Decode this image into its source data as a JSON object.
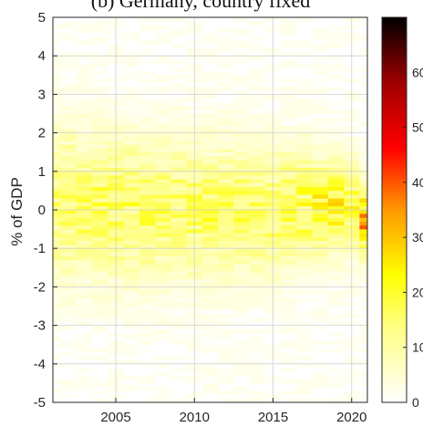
{
  "chart_data": {
    "type": "heatmap",
    "title": "(b) Germany, country fixed",
    "xlabel": "",
    "ylabel": "% of GDP",
    "xlim": [
      2001,
      2021
    ],
    "ylim": [
      -5,
      5
    ],
    "x_ticks": [
      "2005",
      "2010",
      "2015",
      "2020"
    ],
    "y_ticks": [
      "-5",
      "-4",
      "-3",
      "-2",
      "-1",
      "0",
      "1",
      "2",
      "3",
      "4",
      "5"
    ],
    "grid": true,
    "colormap": "hot-reversed",
    "colorbar": {
      "range": [
        0,
        70
      ],
      "ticks": [
        "0",
        "10",
        "20",
        "30",
        "40",
        "50",
        "60"
      ]
    },
    "density_profile": {
      "x_range": [
        2001,
        2021
      ],
      "center_y": [
        0.2,
        0.15,
        0.1,
        0.1,
        0.05,
        0.05,
        0.0,
        0.0,
        0.05,
        0.0,
        0.0,
        0.0,
        0.0,
        0.0,
        0.0,
        0.05,
        0.1,
        0.1,
        0.1,
        0.05,
        -0.3
      ],
      "peak_value": [
        14,
        14,
        14,
        15,
        15,
        15,
        15,
        14,
        14,
        15,
        15,
        15,
        15,
        15,
        15,
        16,
        17,
        19,
        21,
        18,
        30
      ],
      "spread": [
        1.3,
        1.3,
        1.25,
        1.25,
        1.25,
        1.2,
        1.2,
        1.2,
        1.2,
        1.15,
        1.15,
        1.15,
        1.1,
        1.1,
        1.05,
        1.0,
        0.95,
        0.85,
        0.8,
        0.8,
        0.6
      ]
    }
  }
}
